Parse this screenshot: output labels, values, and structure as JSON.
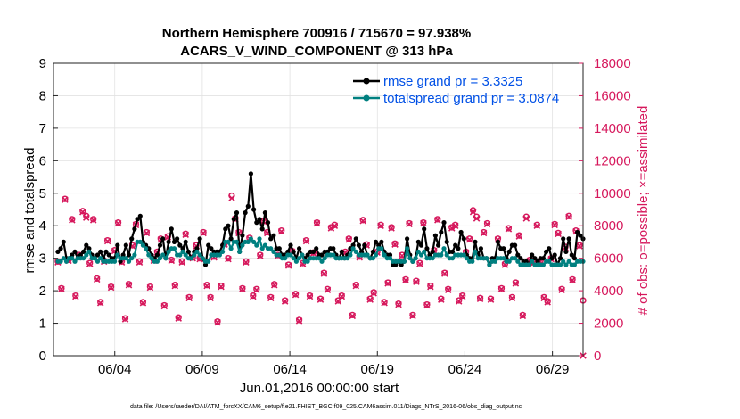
{
  "chart_data": {
    "type": "line",
    "title": "Northern Hemisphere 700916 / 715670 = 97.938%",
    "subtitle": "ACARS_V_WIND_COMPONENT @ 313 hPa",
    "xlabel": "Jun.01,2016 00:00:00 start",
    "ylabel_left": "rmse and totalspread",
    "ylabel_right": "# of obs: o=possible; ×=assimilated",
    "footer": "data file: /Users/raeder/DAI/ATM_forcXX/CAM6_setup/f.e21.FHIST_BGC.f09_025.CAM6assim.011/Diags_NTrS_2016-06/obs_diag_output.nc",
    "xlim": [
      0.5,
      30.75
    ],
    "ylim_left": [
      0,
      9
    ],
    "ylim_right": [
      0,
      18000
    ],
    "x_tick_values": [
      4,
      9,
      14,
      19,
      24,
      29
    ],
    "x_tick_labels": [
      "06/04",
      "06/09",
      "06/14",
      "06/19",
      "06/24",
      "06/29"
    ],
    "y_left_ticks": [
      "0",
      "1",
      "2",
      "3",
      "4",
      "5",
      "6",
      "7",
      "8",
      "9"
    ],
    "y_right_ticks": [
      "0",
      "2000",
      "4000",
      "6000",
      "8000",
      "10000",
      "12000",
      "14000",
      "16000",
      "18000"
    ],
    "legend_position": "top-right",
    "colors": {
      "rmse": "#000000",
      "spread": "#008080",
      "obs": "#d6185c",
      "legend_text": "#0050e6"
    },
    "series": [
      {
        "name": "rmse grand pr = 3.3325",
        "axis": "left",
        "values": [
          3.2,
          3.3,
          3.5,
          3.0,
          3.0,
          3.1,
          3.2,
          3.0,
          3.1,
          3.2,
          3.4,
          3.3,
          3.1,
          3.0,
          3.1,
          3.2,
          3.0,
          3.2,
          3.1,
          3.0,
          3.0,
          3.4,
          2.9,
          3.1,
          3.4,
          3.1,
          3.6,
          3.9,
          4.2,
          4.3,
          3.5,
          3.4,
          3.3,
          3.1,
          3.0,
          3.1,
          3.4,
          3.6,
          3.0,
          3.5,
          3.9,
          3.5,
          3.6,
          3.4,
          3.3,
          3.5,
          3.2,
          3.0,
          3.2,
          3.3,
          3.6,
          3.0,
          2.8,
          3.4,
          3.3,
          3.2,
          3.2,
          3.2,
          3.4,
          3.9,
          4.0,
          3.6,
          4.2,
          4.4,
          3.2,
          3.7,
          4.4,
          4.6,
          5.6,
          4.5,
          4.1,
          4.2,
          3.9,
          4.4,
          4.1,
          3.6,
          3.7,
          3.3,
          3.3,
          3.1,
          3.1,
          3.2,
          3.4,
          3.2,
          3.0,
          3.3,
          3.1,
          3.0,
          3.1,
          3.2,
          3.2,
          3.3,
          3.1,
          3.1,
          3.2,
          3.2,
          3.3,
          3.3,
          3.1,
          3.0,
          3.2,
          3.0,
          3.1,
          3.3,
          3.4,
          3.6,
          3.4,
          3.2,
          3.4,
          3.1,
          3.0,
          3.2,
          3.5,
          3.4,
          3.5,
          3.2,
          3.1,
          3.1,
          2.8,
          2.8,
          2.9,
          2.8,
          2.9,
          3.6,
          3.1,
          2.9,
          3.0,
          3.5,
          3.4,
          3.9,
          3.3,
          3.1,
          3.2,
          3.7,
          3.4,
          3.8,
          4.1,
          3.5,
          3.2,
          3.2,
          3.4,
          3.3,
          3.8,
          3.6,
          3.1,
          3.0,
          3.0,
          3.5,
          3.1,
          3.3,
          3.0,
          3.0,
          2.8,
          3.0,
          3.0,
          3.5,
          3.3,
          3.3,
          3.0,
          3.2,
          3.4,
          3.4,
          3.1,
          3.0,
          2.9,
          2.9,
          2.8,
          3.1,
          3.0,
          2.9,
          3.0,
          3.0,
          3.2,
          3.3,
          3.0,
          3.1,
          2.8,
          3.0,
          3.6,
          3.2,
          3.6,
          3.1,
          3.0,
          3.8,
          3.7,
          3.6
        ]
      },
      {
        "name": "totalspread grand pr = 3.0874",
        "axis": "left",
        "values": [
          2.9,
          2.9,
          3.0,
          2.9,
          3.0,
          3.0,
          2.9,
          3.0,
          3.0,
          3.0,
          3.1,
          3.2,
          3.0,
          3.0,
          2.9,
          3.0,
          2.9,
          2.9,
          2.9,
          2.9,
          2.9,
          3.1,
          3.0,
          3.0,
          3.0,
          2.9,
          3.0,
          3.1,
          3.5,
          3.5,
          3.4,
          3.3,
          3.1,
          3.0,
          2.9,
          2.9,
          3.0,
          3.1,
          3.0,
          3.2,
          3.3,
          3.3,
          3.1,
          3.1,
          3.2,
          3.1,
          3.0,
          3.0,
          3.1,
          3.2,
          3.1,
          3.0,
          2.9,
          2.9,
          3.1,
          3.1,
          3.1,
          3.1,
          3.2,
          3.5,
          3.5,
          3.3,
          3.5,
          3.5,
          3.2,
          3.4,
          3.5,
          3.5,
          3.6,
          3.5,
          3.4,
          3.6,
          3.3,
          3.4,
          3.3,
          3.3,
          3.2,
          3.1,
          3.1,
          3.0,
          3.0,
          3.1,
          3.1,
          3.0,
          2.9,
          3.0,
          3.1,
          2.9,
          2.9,
          3.0,
          3.0,
          3.0,
          3.0,
          2.9,
          3.0,
          3.1,
          3.1,
          3.1,
          3.0,
          3.0,
          3.0,
          3.0,
          3.0,
          3.1,
          3.3,
          3.2,
          3.1,
          3.1,
          3.1,
          3.1,
          3.0,
          3.0,
          3.1,
          3.3,
          3.3,
          3.1,
          3.0,
          3.0,
          2.9,
          2.9,
          2.9,
          2.9,
          2.9,
          3.3,
          3.0,
          2.9,
          3.0,
          3.2,
          3.1,
          3.2,
          3.0,
          3.0,
          3.0,
          3.1,
          3.1,
          3.1,
          3.3,
          3.1,
          3.0,
          3.0,
          3.1,
          3.1,
          3.1,
          3.1,
          3.0,
          2.9,
          2.9,
          3.2,
          3.0,
          3.0,
          3.0,
          3.0,
          2.8,
          2.9,
          2.9,
          3.0,
          3.0,
          3.0,
          2.9,
          2.9,
          3.0,
          3.0,
          2.9,
          2.8,
          2.8,
          2.8,
          2.8,
          2.9,
          2.8,
          2.8,
          2.8,
          2.8,
          2.9,
          2.9,
          2.8,
          2.8,
          2.8,
          2.8,
          2.9,
          2.8,
          2.9,
          2.8,
          2.8,
          2.9,
          2.9,
          2.9
        ]
      },
      {
        "name": "obs possible",
        "axis": "right",
        "marker": "o",
        "values": [
          5800,
          4150,
          9650,
          5900,
          8400,
          3700,
          6200,
          8900,
          8600,
          5700,
          8400,
          4750,
          3300,
          5850,
          7100,
          4250,
          6500,
          8200,
          5800,
          2300,
          4400,
          6800,
          8100,
          5800,
          3300,
          7600,
          4250,
          5900,
          6400,
          7200,
          3100,
          7350,
          5900,
          4350,
          2350,
          5800,
          7500,
          3600,
          6050,
          6800,
          6000,
          7600,
          4350,
          3600,
          6100,
          2100,
          4300,
          6900,
          6000,
          9850,
          8450,
          7600,
          4150,
          5800,
          7250,
          3700,
          4100,
          6200,
          8300,
          7600,
          3600,
          4400,
          6200,
          7700,
          3400,
          5600,
          6450,
          3800,
          2200,
          5700,
          7100,
          3700,
          6350,
          8200,
          3500,
          5100,
          4100,
          7900,
          8050,
          3400,
          3700,
          6400,
          7200,
          2500,
          4350,
          6100,
          8350,
          6850,
          3500,
          3900,
          6400,
          8050,
          3300,
          4500,
          7900,
          6900,
          3200,
          6200,
          4700,
          8150,
          2500,
          4600,
          5700,
          8200,
          3150,
          4300,
          6500,
          8400,
          3500,
          5100,
          4100,
          7900,
          8050,
          3400,
          3700,
          6400,
          7200,
          8950,
          8550,
          3550,
          7600,
          8150,
          3500,
          5900,
          7200,
          4150,
          5650,
          7850,
          3600,
          4500,
          7400,
          2500,
          8550,
          5900,
          5750,
          8050,
          5850,
          3600,
          3350,
          6000,
          8100,
          7550,
          4100,
          6700,
          8600,
          4700,
          7700,
          6800,
          3400
        ]
      },
      {
        "name": "obs assimilated",
        "axis": "right",
        "marker": "x",
        "values": [
          5750,
          4100,
          9600,
          5850,
          8350,
          3650,
          6150,
          8850,
          8500,
          5650,
          8350,
          4700,
          3250,
          5800,
          7050,
          4200,
          6450,
          8150,
          5750,
          2250,
          4350,
          6750,
          8050,
          5750,
          3250,
          7550,
          4200,
          5850,
          6350,
          7150,
          3050,
          7300,
          5850,
          4300,
          2300,
          5750,
          7450,
          3550,
          6000,
          6750,
          5950,
          7550,
          4300,
          3550,
          6050,
          2050,
          4250,
          6850,
          5950,
          9700,
          8400,
          7550,
          4100,
          5750,
          7200,
          3650,
          4050,
          6150,
          8250,
          7550,
          3550,
          4350,
          6150,
          7650,
          3350,
          5550,
          6400,
          3750,
          2150,
          5650,
          7050,
          3650,
          6300,
          8150,
          3450,
          5050,
          4050,
          7850,
          8000,
          3350,
          3650,
          6350,
          7150,
          2450,
          4300,
          6050,
          8300,
          6800,
          3450,
          3850,
          6350,
          8000,
          3250,
          4450,
          7850,
          6850,
          3150,
          6150,
          4650,
          8100,
          2450,
          4550,
          5650,
          8150,
          3100,
          4250,
          6450,
          8350,
          3450,
          5050,
          4050,
          7850,
          8000,
          3350,
          3650,
          6350,
          7150,
          8850,
          8450,
          3500,
          7550,
          8100,
          3450,
          5850,
          7150,
          4100,
          5600,
          7800,
          3550,
          4450,
          7350,
          2450,
          8450,
          5850,
          5700,
          8000,
          5800,
          3550,
          3300,
          5950,
          8050,
          7500,
          4050,
          6650,
          8550,
          4650,
          7650,
          6750,
          0
        ]
      }
    ]
  }
}
